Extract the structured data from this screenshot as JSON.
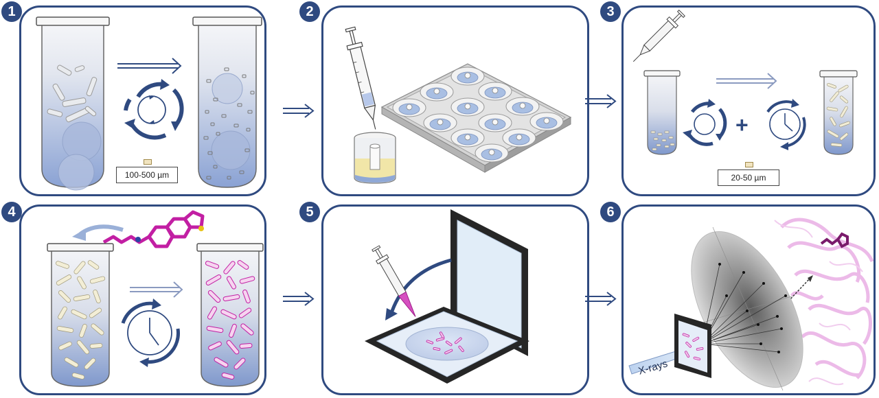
{
  "steps": [
    {
      "number": "1"
    },
    {
      "number": "2"
    },
    {
      "number": "3"
    },
    {
      "number": "4"
    },
    {
      "number": "5"
    },
    {
      "number": "6"
    }
  ],
  "panel1": {
    "scale_label": "100-500 µm"
  },
  "panel3": {
    "scale_label": "20-50 µm",
    "plus_symbol": "+"
  },
  "panel6": {
    "xray_label": "X-rays"
  },
  "colors": {
    "panel_border": "#2f4a80",
    "accent_blue": "#2f4a80",
    "ligand_magenta": "#c21fa3",
    "protein_pink": "#eab3e6",
    "tube_gradient_bottom": "#8aa2d4"
  }
}
